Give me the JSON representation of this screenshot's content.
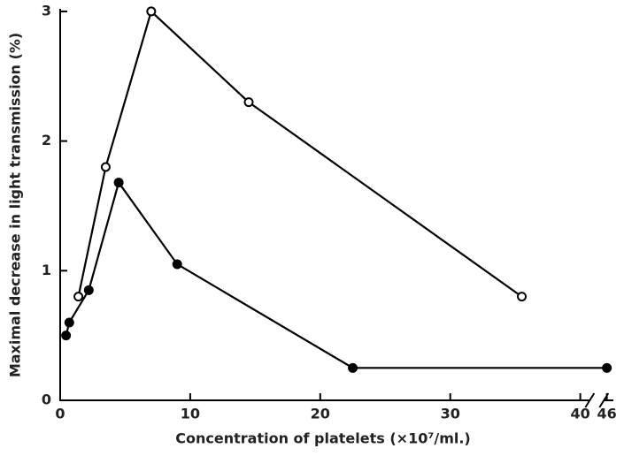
{
  "chart_data": {
    "type": "line",
    "xlabel": "Concentration of platelets (×10⁷/ml.)",
    "ylabel": "Maximal decrease in light transmission (%)",
    "series": [
      {
        "x": [
          1.4,
          3.5,
          7,
          14.5,
          35.5
        ],
        "values": [
          0.8,
          1.8,
          3.0,
          2.3,
          0.8
        ],
        "color": "#000000",
        "marker_fill": "#ffffff"
      },
      {
        "x": [
          0.45,
          0.7,
          2.2,
          4.5,
          9,
          22.5,
          46
        ],
        "values": [
          0.5,
          0.6,
          0.85,
          1.68,
          1.05,
          0.25,
          0.25
        ],
        "color": "#000000",
        "marker_fill": "#000000"
      }
    ],
    "xlim": [
      0,
      46.5
    ],
    "xbreak": [
      41,
      45.5
    ],
    "xticks": [
      0,
      10,
      20,
      30,
      40,
      46
    ],
    "ylim": [
      0,
      3.02
    ],
    "yticks": [
      0,
      1,
      2,
      3
    ],
    "grid": false
  }
}
